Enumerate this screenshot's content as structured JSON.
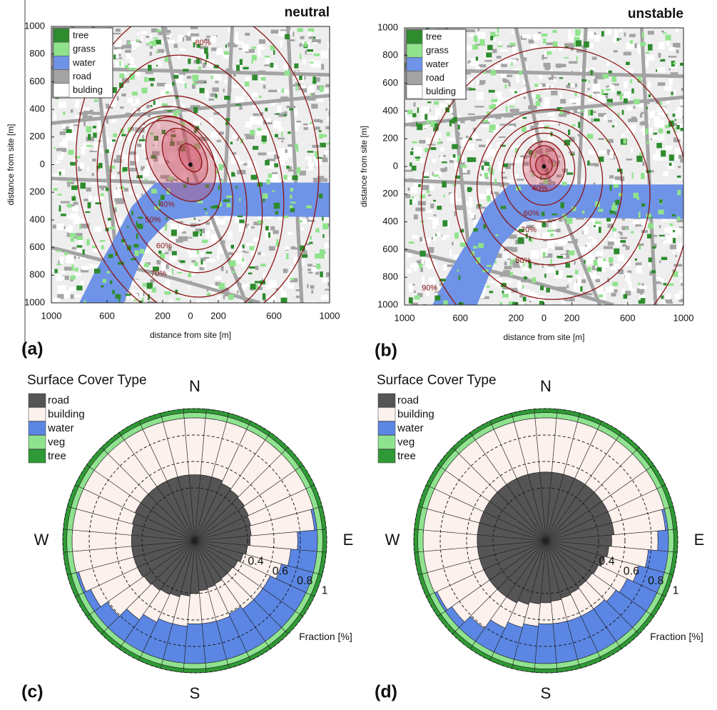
{
  "chart_data": [
    {
      "type": "map",
      "title": "neutral",
      "panel": "(a)",
      "xlabel": "distance from site [m]",
      "ylabel": "distance from site [m]",
      "xlim": [
        -1000,
        1000
      ],
      "ylim": [
        -1000,
        1000
      ],
      "xticks": [
        {
          "value": -1000,
          "label": "1000"
        },
        {
          "value": -600,
          "label": "600"
        },
        {
          "value": -200,
          "label": "200"
        },
        0,
        200,
        600,
        1000
      ],
      "yticks": [
        1000,
        800,
        600,
        400,
        200,
        0,
        {
          "value": -200,
          "label": "200"
        },
        {
          "value": -400,
          "label": "400"
        },
        {
          "value": -600,
          "label": "600"
        },
        {
          "value": -800,
          "label": "800"
        },
        {
          "value": -1000,
          "label": "1000"
        }
      ],
      "legend": [
        {
          "name": "tree",
          "color": "#2e8b2e"
        },
        {
          "name": "grass",
          "color": "#90e38c"
        },
        {
          "name": "water",
          "color": "#6f93e6"
        },
        {
          "name": "road",
          "color": "#a3a3a3"
        },
        {
          "name": "bulding",
          "color": "#ffffff"
        }
      ],
      "contour_labels": [
        "40%",
        "50%",
        "60%",
        "70%",
        "80%"
      ]
    },
    {
      "type": "map",
      "title": "unstable",
      "panel": "(b)",
      "xlabel": "distance from site [m]",
      "ylabel": "distance from site [m]",
      "xlim": [
        -1000,
        1000
      ],
      "ylim": [
        -1000,
        1000
      ],
      "xticks": [
        {
          "value": -1000,
          "label": "1000"
        },
        {
          "value": -600,
          "label": "600"
        },
        {
          "value": -200,
          "label": "200"
        },
        0,
        200,
        600,
        1000
      ],
      "yticks": [
        1000,
        800,
        600,
        400,
        200,
        0,
        {
          "value": -200,
          "label": "200"
        },
        {
          "value": -400,
          "label": "400"
        },
        {
          "value": -600,
          "label": "600"
        },
        {
          "value": -800,
          "label": "800"
        },
        {
          "value": -1000,
          "label": "1000"
        }
      ],
      "legend": [
        {
          "name": "tree",
          "color": "#2e8b2e"
        },
        {
          "name": "grass",
          "color": "#90e38c"
        },
        {
          "name": "water",
          "color": "#6f93e6"
        },
        {
          "name": "road",
          "color": "#a3a3a3"
        },
        {
          "name": "bulding",
          "color": "#ffffff"
        }
      ],
      "contour_labels": [
        "40%",
        "60%",
        "70%",
        "80%",
        "90%"
      ]
    },
    {
      "type": "polar",
      "panel": "(c)",
      "legend_title": "Surface Cover Type",
      "directions": [
        "N",
        "E",
        "S",
        "W"
      ],
      "rlabel": "Fraction [%]",
      "rlim": [
        0,
        1
      ],
      "rticks": [
        0.4,
        0.6,
        0.8,
        1
      ],
      "series": [
        {
          "name": "road",
          "color": "#555555",
          "values": [
            0.5,
            0.5,
            0.5,
            0.48,
            0.47,
            0.46,
            0.45,
            0.44,
            0.43,
            0.42,
            0.4,
            0.38,
            0.36,
            0.35,
            0.35,
            0.36,
            0.37,
            0.38,
            0.4,
            0.42,
            0.44,
            0.45,
            0.46,
            0.47,
            0.48,
            0.48,
            0.48,
            0.48,
            0.48,
            0.49,
            0.5,
            0.5,
            0.5,
            0.5,
            0.5,
            0.5
          ]
        },
        {
          "name": "building",
          "color": "#fcf1ec",
          "values": [
            0.43,
            0.43,
            0.43,
            0.45,
            0.46,
            0.47,
            0.48,
            0.49,
            0.48,
            0.36,
            0.33,
            0.3,
            0.27,
            0.28,
            0.28,
            0.25,
            0.26,
            0.25,
            0.23,
            0.23,
            0.21,
            0.23,
            0.27,
            0.34,
            0.39,
            0.43,
            0.45,
            0.45,
            0.45,
            0.44,
            0.43,
            0.43,
            0.43,
            0.43,
            0.43,
            0.43
          ]
        },
        {
          "name": "water",
          "color": "#5b86e3",
          "values": [
            0,
            0,
            0,
            0,
            0,
            0,
            0,
            0,
            0.02,
            0.15,
            0.2,
            0.25,
            0.3,
            0.3,
            0.3,
            0.32,
            0.3,
            0.3,
            0.3,
            0.28,
            0.28,
            0.25,
            0.2,
            0.12,
            0.06,
            0.02,
            0,
            0,
            0,
            0,
            0,
            0,
            0,
            0,
            0,
            0
          ]
        },
        {
          "name": "veg",
          "color": "#8fe38f",
          "values": [
            0.04,
            0.04,
            0.04,
            0.04,
            0.04,
            0.04,
            0.04,
            0.04,
            0.04,
            0.04,
            0.04,
            0.04,
            0.04,
            0.04,
            0.04,
            0.04,
            0.04,
            0.04,
            0.04,
            0.04,
            0.04,
            0.04,
            0.04,
            0.04,
            0.04,
            0.04,
            0.04,
            0.04,
            0.04,
            0.04,
            0.04,
            0.04,
            0.04,
            0.04,
            0.04,
            0.04
          ]
        },
        {
          "name": "tree",
          "color": "#2f9a35",
          "values": [
            0.03,
            0.03,
            0.03,
            0.03,
            0.03,
            0.03,
            0.03,
            0.03,
            0.03,
            0.03,
            0.03,
            0.03,
            0.03,
            0.03,
            0.03,
            0.03,
            0.03,
            0.03,
            0.03,
            0.03,
            0.03,
            0.03,
            0.03,
            0.03,
            0.03,
            0.03,
            0.03,
            0.03,
            0.03,
            0.03,
            0.03,
            0.03,
            0.03,
            0.03,
            0.03,
            0.03
          ]
        }
      ]
    },
    {
      "type": "polar",
      "panel": "(d)",
      "legend_title": "Surface Cover Type",
      "directions": [
        "N",
        "E",
        "S",
        "W"
      ],
      "rlabel": "Fraction [%]",
      "rlim": [
        0,
        1
      ],
      "rticks": [
        0.4,
        0.6,
        0.8,
        1
      ],
      "series": [
        {
          "name": "road",
          "color": "#555555",
          "values": [
            0.52,
            0.52,
            0.52,
            0.52,
            0.52,
            0.52,
            0.52,
            0.52,
            0.52,
            0.5,
            0.48,
            0.46,
            0.44,
            0.43,
            0.43,
            0.44,
            0.45,
            0.46,
            0.47,
            0.48,
            0.5,
            0.52,
            0.52,
            0.52,
            0.52,
            0.52,
            0.52,
            0.52,
            0.52,
            0.52,
            0.52,
            0.52,
            0.52,
            0.52,
            0.52,
            0.52
          ]
        },
        {
          "name": "building",
          "color": "#fcf1ec",
          "values": [
            0.41,
            0.41,
            0.41,
            0.41,
            0.41,
            0.41,
            0.41,
            0.41,
            0.39,
            0.35,
            0.3,
            0.27,
            0.24,
            0.22,
            0.2,
            0.19,
            0.18,
            0.17,
            0.16,
            0.17,
            0.18,
            0.21,
            0.29,
            0.35,
            0.39,
            0.41,
            0.41,
            0.41,
            0.41,
            0.41,
            0.41,
            0.41,
            0.41,
            0.41,
            0.41,
            0.41
          ]
        },
        {
          "name": "water",
          "color": "#5b86e3",
          "values": [
            0,
            0,
            0,
            0,
            0,
            0,
            0,
            0,
            0.02,
            0.08,
            0.15,
            0.2,
            0.25,
            0.28,
            0.3,
            0.3,
            0.3,
            0.3,
            0.3,
            0.28,
            0.25,
            0.2,
            0.12,
            0.06,
            0.02,
            0,
            0,
            0,
            0,
            0,
            0,
            0,
            0,
            0,
            0,
            0
          ]
        },
        {
          "name": "veg",
          "color": "#8fe38f",
          "values": [
            0.04,
            0.04,
            0.04,
            0.04,
            0.04,
            0.04,
            0.04,
            0.04,
            0.04,
            0.04,
            0.04,
            0.04,
            0.04,
            0.04,
            0.04,
            0.04,
            0.04,
            0.04,
            0.04,
            0.04,
            0.04,
            0.04,
            0.04,
            0.04,
            0.04,
            0.04,
            0.04,
            0.04,
            0.04,
            0.04,
            0.04,
            0.04,
            0.04,
            0.04,
            0.04,
            0.04
          ]
        },
        {
          "name": "tree",
          "color": "#2f9a35",
          "values": [
            0.03,
            0.03,
            0.03,
            0.03,
            0.03,
            0.03,
            0.03,
            0.03,
            0.03,
            0.03,
            0.03,
            0.03,
            0.03,
            0.03,
            0.03,
            0.03,
            0.03,
            0.03,
            0.03,
            0.03,
            0.03,
            0.03,
            0.03,
            0.03,
            0.03,
            0.03,
            0.03,
            0.03,
            0.03,
            0.03,
            0.03,
            0.03,
            0.03,
            0.03,
            0.03,
            0.03
          ]
        }
      ]
    }
  ]
}
